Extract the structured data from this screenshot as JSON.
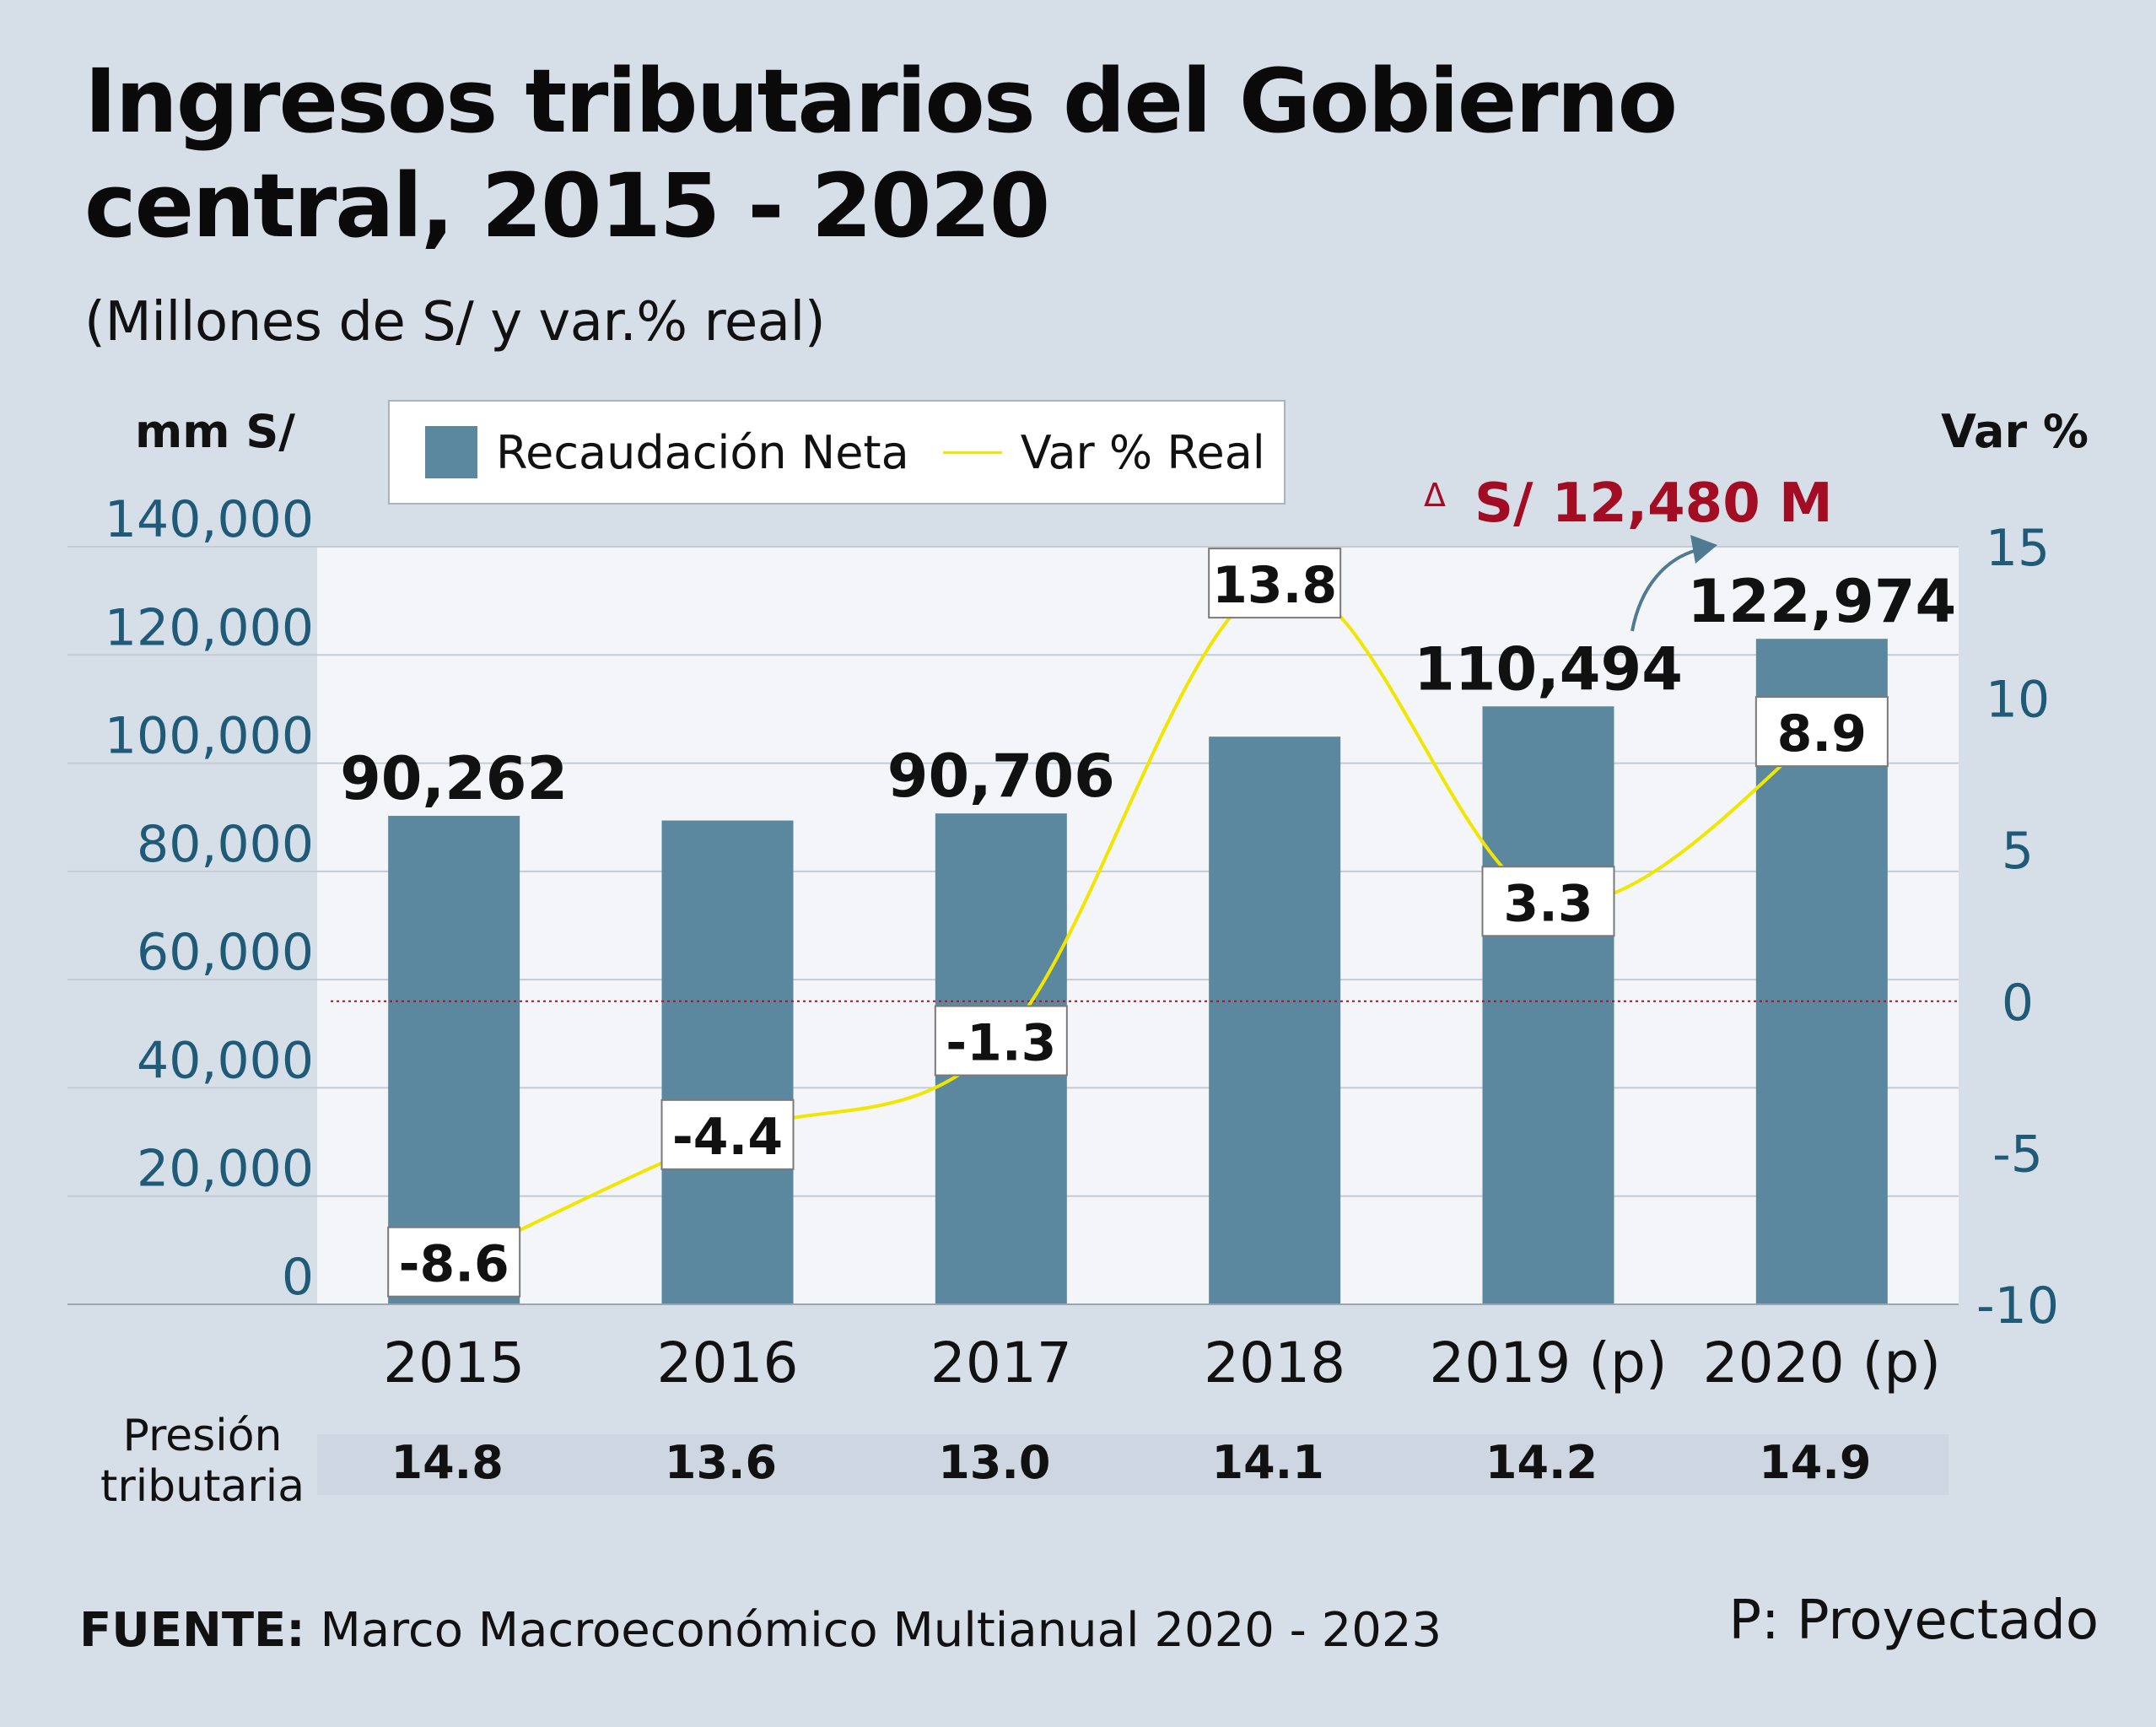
{
  "title_line1": "Ingresos tributarios del Gobierno",
  "title_line2": "central, 2015 - 2020",
  "subtitle": "(Millones de S/ y var.% real)",
  "left_axis_unit": "mm S/",
  "right_axis_unit": "Var %",
  "legend": {
    "bar_label": "Recaudación Neta",
    "line_label": "Var % Real"
  },
  "delta_annotation": {
    "symbol": "Δ",
    "text": "S/ 12,480 M",
    "color": "#a30d24"
  },
  "pressure": {
    "label_line1": "Presión",
    "label_line2": "tributaria",
    "values": [
      "14.8",
      "13.6",
      "13.0",
      "14.1",
      "14.2",
      "14.9"
    ]
  },
  "footer": {
    "source_label": "FUENTE:",
    "source_text": " Marco Macroeconómico Multianual 2020 - 2023",
    "note": "P: Proyectado"
  },
  "colors": {
    "bar": "#5b889f",
    "line": "#f2e600",
    "left_ticks": "#1f5a78",
    "right_ticks": "#1f5a78",
    "zero_line": "#b0101c",
    "plot_bg": "#f3f5f9"
  },
  "chart_data": {
    "type": "bar",
    "categories": [
      "2015",
      "2016",
      "2017",
      "2018",
      "2019 (p)",
      "2020 (p)"
    ],
    "series": [
      {
        "name": "Recaudación Neta",
        "axis": "left",
        "values": [
          90262,
          89400,
          90706,
          104900,
          110494,
          122974
        ],
        "labels": [
          "90,262",
          "",
          "90,706",
          "",
          "110,494",
          "122,974"
        ]
      },
      {
        "name": "Var % Real",
        "axis": "right",
        "type": "line",
        "values": [
          -8.6,
          -4.4,
          -1.3,
          13.8,
          3.3,
          8.9
        ],
        "labels": [
          "-8.6",
          "-4.4",
          "-1.3",
          "13.8",
          "3.3",
          "8.9"
        ]
      }
    ],
    "left_axis": {
      "ylim": [
        0,
        140000
      ],
      "ticks": [
        0,
        20000,
        40000,
        60000,
        80000,
        100000,
        120000,
        140000
      ],
      "tick_labels": [
        "0",
        "20,000",
        "40,000",
        "60,000",
        "80,000",
        "100,000",
        "120,000",
        "140,000"
      ]
    },
    "right_axis": {
      "ylim": [
        -10,
        15
      ],
      "ticks": [
        -10,
        -5,
        0,
        5,
        10,
        15
      ],
      "tick_labels": [
        "-10",
        "-5",
        "0",
        "5",
        "10",
        "15"
      ]
    },
    "grid": true,
    "reference_line": {
      "axis": "right",
      "value": 0,
      "style": "dotted"
    }
  }
}
